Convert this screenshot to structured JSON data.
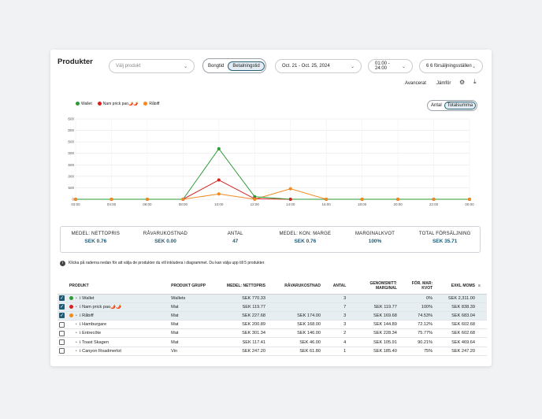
{
  "page": {
    "title": "Produkter"
  },
  "filters": {
    "product_placeholder": "Välj produkt",
    "tabs": [
      "Bongtid",
      "Betalningstid"
    ],
    "active_tab": "Betalningstid",
    "date_range": "Oct. 21 - Oct. 25, 2024",
    "time_range": "01:00 - 24:00",
    "locations": "6 6 försäljningsställen"
  },
  "actions": {
    "advanced": "Avancerat",
    "compare": "Jämför"
  },
  "legend": [
    {
      "name": "Wallet",
      "color": "#2e9a36"
    },
    {
      "name": "Nam prick pao🌶️🌶️",
      "color": "#d42020"
    },
    {
      "name": "Råbiff",
      "color": "#f08a22"
    }
  ],
  "toggle": {
    "options": [
      "Antal",
      "Totalsumma"
    ],
    "active": "Totalsumma"
  },
  "chart_data": {
    "type": "line",
    "categories": [
      "03:00",
      "04:00",
      "06:00",
      "08:00",
      "10:00",
      "12:00",
      "14:00",
      "16:00",
      "18:00",
      "20:00",
      "22:00",
      "00:00"
    ],
    "y_ticks": [
      0,
      500,
      1000,
      1500,
      2000,
      2500,
      3000,
      3500
    ],
    "ylim": [
      0,
      3500
    ],
    "grid": true,
    "legend_position": "top-left",
    "series": [
      {
        "name": "Wallet",
        "color": "#2e9a36",
        "values": [
          0,
          0,
          0,
          0,
          2200,
          110,
          0,
          0,
          0,
          0,
          0,
          0
        ]
      },
      {
        "name": "Nam prick pao🌶️🌶️",
        "color": "#d42020",
        "values": [
          0,
          0,
          0,
          0,
          840,
          20,
          0,
          0,
          0,
          0,
          0,
          0
        ]
      },
      {
        "name": "Råbiff",
        "color": "#f08a22",
        "values": [
          0,
          0,
          0,
          0,
          230,
          0,
          460,
          0,
          0,
          0,
          0,
          0
        ]
      }
    ]
  },
  "summary": [
    {
      "label": "MEDEL: NETTOPRIS",
      "value": "SEK 0.76"
    },
    {
      "label": "RÅVARUKOSTNAD",
      "value": "SEK 0.00"
    },
    {
      "label": "ANTAL",
      "value": "47"
    },
    {
      "label": "MEDEL: KON: MARGE",
      "value": "SEK 0.76"
    },
    {
      "label": "MARGINALKVOT",
      "value": "100%"
    },
    {
      "label": "TOTAL FÖRSÄLJNING",
      "value": "SEK 35.71"
    }
  ],
  "info_text": "Klicka på raderna nedan för att välja de produkter du vill inkludera i diagrammet. Du kan välja upp till 5 produkter.",
  "table": {
    "headers": [
      "PRODUKT",
      "PRODUKT GRUPP",
      "MEDEL: NETTOPRIS",
      "RÅVARUKOSTNAD",
      "ANTAL",
      "GENOMSNITT: MARGINAL",
      "FÖR. MAR: KVOT",
      "EXKL MOMS"
    ],
    "rows": [
      {
        "checked": true,
        "color": "#2e9a36",
        "name": "Wallet",
        "group": "Wallets",
        "price": "SEK 770.33",
        "cost": "",
        "qty": "3",
        "margin": "",
        "ratio": "0%",
        "total": "SEK 2,311.00"
      },
      {
        "checked": true,
        "color": "#d42020",
        "name": "Nam prick pao🌶️🌶️",
        "group": "Mat",
        "price": "SEK 119.77",
        "cost": "",
        "qty": "7",
        "margin": "SEK 119.77",
        "ratio": "100%",
        "total": "SEK 838.39"
      },
      {
        "checked": true,
        "color": "#f08a22",
        "name": "Råbiff",
        "group": "Mat",
        "price": "SEK 227.68",
        "cost": "SEK 174.00",
        "qty": "3",
        "margin": "SEK 169.68",
        "ratio": "74.53%",
        "total": "SEK 683.04"
      },
      {
        "checked": false,
        "color": "",
        "name": "Hamburgare",
        "group": "Mat",
        "price": "SEK 200.89",
        "cost": "SEK 168.00",
        "qty": "3",
        "margin": "SEK 144.89",
        "ratio": "72.12%",
        "total": "SEK 602.68"
      },
      {
        "checked": false,
        "color": "",
        "name": "Entrecôte",
        "group": "Mat",
        "price": "SEK 301.34",
        "cost": "SEK 146.00",
        "qty": "2",
        "margin": "SEK 228.34",
        "ratio": "75.77%",
        "total": "SEK 602.68"
      },
      {
        "checked": false,
        "color": "",
        "name": "Toast Skagen",
        "group": "Mat",
        "price": "SEK 117.41",
        "cost": "SEK 46.00",
        "qty": "4",
        "margin": "SEK 105.91",
        "ratio": "90.21%",
        "total": "SEK 469.64"
      },
      {
        "checked": false,
        "color": "",
        "name": "Canyon Roadmerlot",
        "group": "Vin",
        "price": "SEK 247.20",
        "cost": "SEK 61.80",
        "qty": "1",
        "margin": "SEK 185.40",
        "ratio": "75%",
        "total": "SEK 247.20"
      }
    ]
  }
}
